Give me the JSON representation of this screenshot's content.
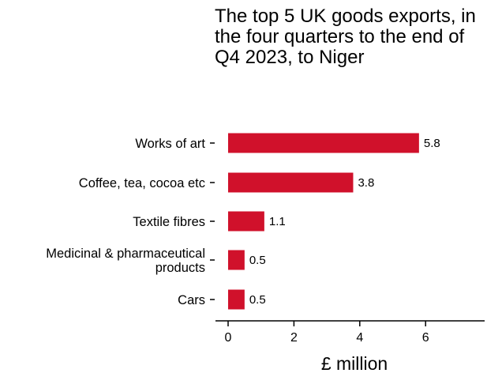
{
  "chart_data": {
    "type": "bar",
    "orientation": "horizontal",
    "title": "The top 5 UK goods exports, in the four quarters to the end of Q4 2023, to Niger",
    "xlabel": "£ million",
    "ylabel": "",
    "categories": [
      [
        "Works of art"
      ],
      [
        "Coffee, tea, cocoa etc"
      ],
      [
        "Textile fibres"
      ],
      [
        "Medicinal & pharmaceutical",
        "products"
      ],
      [
        "Cars"
      ]
    ],
    "values": [
      5.8,
      3.8,
      1.1,
      0.5,
      0.5
    ],
    "value_labels": [
      "5.8",
      "3.8",
      "1.1",
      "0.5",
      "0.5"
    ],
    "xticks": [
      0,
      2,
      4,
      6
    ],
    "xlim": [
      0,
      7.8
    ],
    "grid": false,
    "bar_color": "#d0112b"
  }
}
